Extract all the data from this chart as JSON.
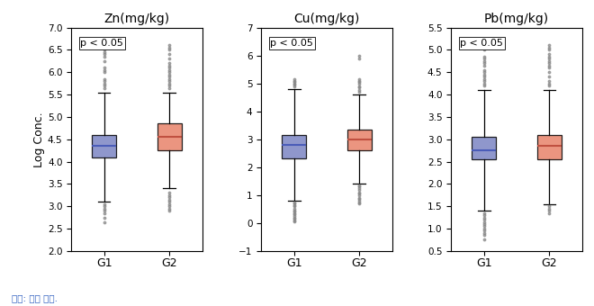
{
  "panels": [
    {
      "title": "Zn(mg/kg)",
      "ylim": [
        2.0,
        7.0
      ],
      "yticks": [
        2.0,
        2.5,
        3.0,
        3.5,
        4.0,
        4.5,
        5.0,
        5.5,
        6.0,
        6.5,
        7.0
      ],
      "g1": {
        "q1": 4.1,
        "median": 4.35,
        "q3": 4.6,
        "whislo": 3.1,
        "whishi": 5.55,
        "fliers_low": [
          2.75,
          2.65,
          2.85,
          2.9,
          2.95,
          3.0,
          3.05
        ],
        "fliers_high": [
          5.65,
          5.7,
          5.75,
          5.8,
          5.85,
          6.0,
          6.05,
          6.1,
          6.25,
          6.35,
          6.4,
          6.45,
          6.5,
          6.6,
          6.65
        ]
      },
      "g2": {
        "q1": 4.25,
        "median": 4.55,
        "q3": 4.85,
        "whislo": 3.4,
        "whishi": 5.55,
        "fliers_low": [
          2.9,
          2.95,
          3.0,
          3.05,
          3.1,
          3.15,
          3.2,
          3.25,
          3.3
        ],
        "fliers_high": [
          5.65,
          5.7,
          5.75,
          5.8,
          5.85,
          5.9,
          5.95,
          6.0,
          6.05,
          6.1,
          6.15,
          6.2,
          6.3,
          6.4,
          6.5,
          6.55,
          6.6
        ]
      }
    },
    {
      "title": "Cu(mg/kg)",
      "ylim": [
        -1.0,
        7.0
      ],
      "yticks": [
        -1.0,
        0.0,
        1.0,
        2.0,
        3.0,
        4.0,
        5.0,
        6.0,
        7.0
      ],
      "g1": {
        "q1": 2.3,
        "median": 2.8,
        "q3": 3.15,
        "whislo": 0.8,
        "whishi": 4.8,
        "fliers_low": [
          0.05,
          0.1,
          0.15,
          0.2,
          0.25,
          0.3,
          0.35,
          0.4,
          0.45,
          0.5,
          0.6,
          0.65,
          0.7,
          0.75
        ],
        "fliers_high": [
          4.9,
          4.95,
          5.0,
          5.05,
          5.1,
          5.15
        ]
      },
      "g2": {
        "q1": 2.6,
        "median": 3.0,
        "q3": 3.35,
        "whislo": 1.4,
        "whishi": 4.6,
        "fliers_low": [
          0.7,
          0.75,
          0.8,
          0.85,
          0.9,
          1.0,
          1.05,
          1.1,
          1.2,
          1.25,
          1.3,
          1.35
        ],
        "fliers_high": [
          4.7,
          4.75,
          4.85,
          4.9,
          5.0,
          5.05,
          5.1,
          5.15,
          5.9,
          6.0
        ]
      }
    },
    {
      "title": "Pb(mg/kg)",
      "ylim": [
        0.5,
        5.5
      ],
      "yticks": [
        0.5,
        1.0,
        1.5,
        2.0,
        2.5,
        3.0,
        3.5,
        4.0,
        4.5,
        5.0,
        5.5
      ],
      "g1": {
        "q1": 2.55,
        "median": 2.75,
        "q3": 3.05,
        "whislo": 1.4,
        "whishi": 4.1,
        "fliers_low": [
          0.75,
          0.85,
          0.9,
          0.95,
          1.0,
          1.05,
          1.1,
          1.15,
          1.2,
          1.25,
          1.3,
          1.35
        ],
        "fliers_high": [
          4.2,
          4.25,
          4.3,
          4.35,
          4.4,
          4.45,
          4.5,
          4.55,
          4.65,
          4.7,
          4.75,
          4.8,
          4.85,
          5.0,
          5.05
        ]
      },
      "g2": {
        "q1": 2.55,
        "median": 2.85,
        "q3": 3.1,
        "whislo": 1.55,
        "whishi": 4.1,
        "fliers_low": [
          1.35,
          1.4,
          1.45,
          1.5
        ],
        "fliers_high": [
          4.2,
          4.25,
          4.3,
          4.4,
          4.5,
          4.6,
          4.65,
          4.7,
          4.75,
          4.8,
          4.85,
          4.9,
          5.0,
          5.05,
          5.1
        ]
      }
    }
  ],
  "color_g1": "#7b85c4",
  "color_g2": "#e8836a",
  "median_color_g1": "#4a5cb8",
  "median_color_g2": "#c05040",
  "ylabel": "Log Conc.",
  "annotation": "p < 0.05",
  "footnote": "자료: 저자 작성.",
  "footnote_color": "#3060c0",
  "background_color": "#ffffff",
  "box_width": 0.38,
  "linewidth": 0.9,
  "flier_size": 1.8,
  "flier_color": "#888888",
  "flier_alpha": 0.7
}
